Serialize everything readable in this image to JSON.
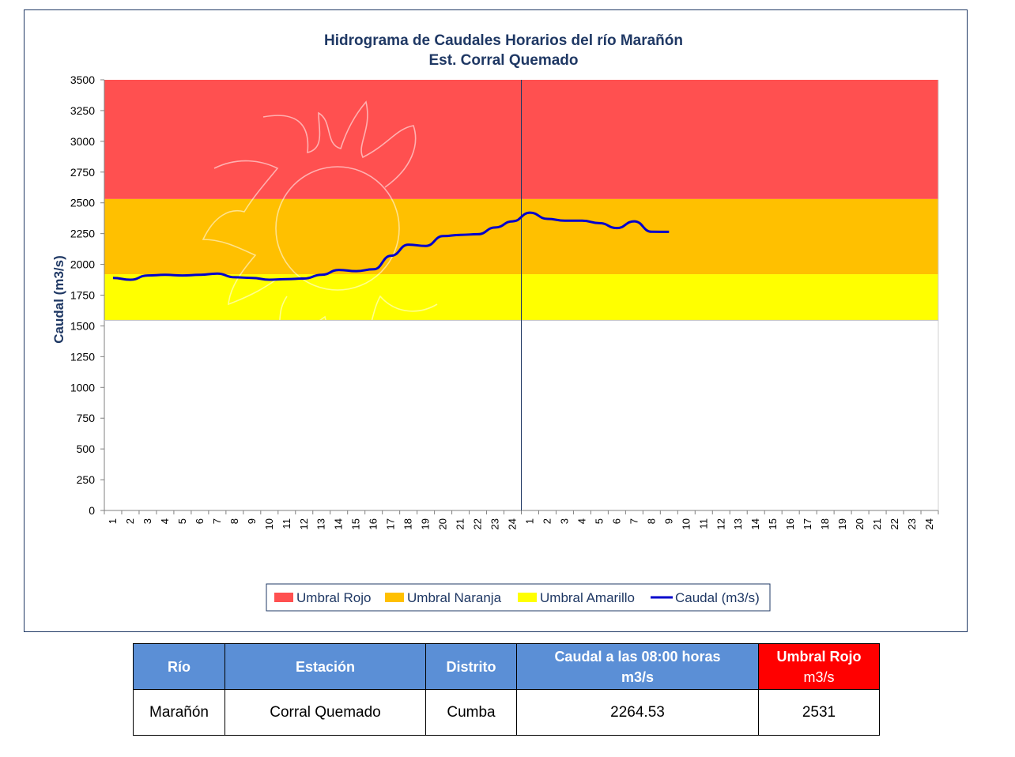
{
  "chart_data": {
    "type": "line",
    "title": "Hidrograma  de Caudales Horarios  del río Marañón",
    "subtitle": "Est. Corral Quemado",
    "ylabel": "Caudal (m3/s)",
    "xlabel": "",
    "ylim": [
      0,
      3500
    ],
    "yticks": [
      0,
      250,
      500,
      750,
      1000,
      1250,
      1500,
      1750,
      2000,
      2250,
      2500,
      2750,
      3000,
      3250,
      3500
    ],
    "x_categories": [
      "1",
      "2",
      "3",
      "4",
      "5",
      "6",
      "7",
      "8",
      "9",
      "10",
      "11",
      "12",
      "13",
      "14",
      "15",
      "16",
      "17",
      "18",
      "19",
      "20",
      "21",
      "22",
      "23",
      "24",
      "1",
      "2",
      "3",
      "4",
      "5",
      "6",
      "7",
      "8",
      "9",
      "10",
      "11",
      "12",
      "13",
      "14",
      "15",
      "16",
      "17",
      "18",
      "19",
      "20",
      "21",
      "22",
      "23",
      "24"
    ],
    "grid": false,
    "legend_position": "bottom",
    "thresholds": [
      {
        "name": "Umbral Rojo",
        "from": 2531,
        "to": 3500,
        "color": "#ff5050"
      },
      {
        "name": "Umbral Naranja",
        "from": 1920,
        "to": 2531,
        "color": "#ffc000"
      },
      {
        "name": "Umbral Amarillo",
        "from": 1545,
        "to": 1920,
        "color": "#ffff00"
      }
    ],
    "series": [
      {
        "name": "Caudal (m3/s)",
        "color": "#0000cc",
        "values": [
          1890,
          1875,
          1910,
          1915,
          1910,
          1915,
          1925,
          1895,
          1890,
          1875,
          1880,
          1885,
          1915,
          1955,
          1945,
          1960,
          2070,
          2160,
          2150,
          2230,
          2240,
          2245,
          2300,
          2350,
          2420,
          2370,
          2355,
          2355,
          2335,
          2295,
          2350,
          2265,
          2264.53
        ]
      }
    ],
    "day_divider_after_index": 23
  },
  "table": {
    "headers": {
      "rio": "Río",
      "estacion": "Estación",
      "distrito": "Distrito",
      "caudal_line1": "Caudal a las 08:00 horas",
      "caudal_line2": "m3/s",
      "umbral_line1": "Umbral Rojo",
      "umbral_line2": "m3/s"
    },
    "row": {
      "rio": "Marañón",
      "estacion": "Corral Quemado",
      "distrito": "Cumba",
      "caudal": "2264.53",
      "umbral": "2531"
    }
  }
}
